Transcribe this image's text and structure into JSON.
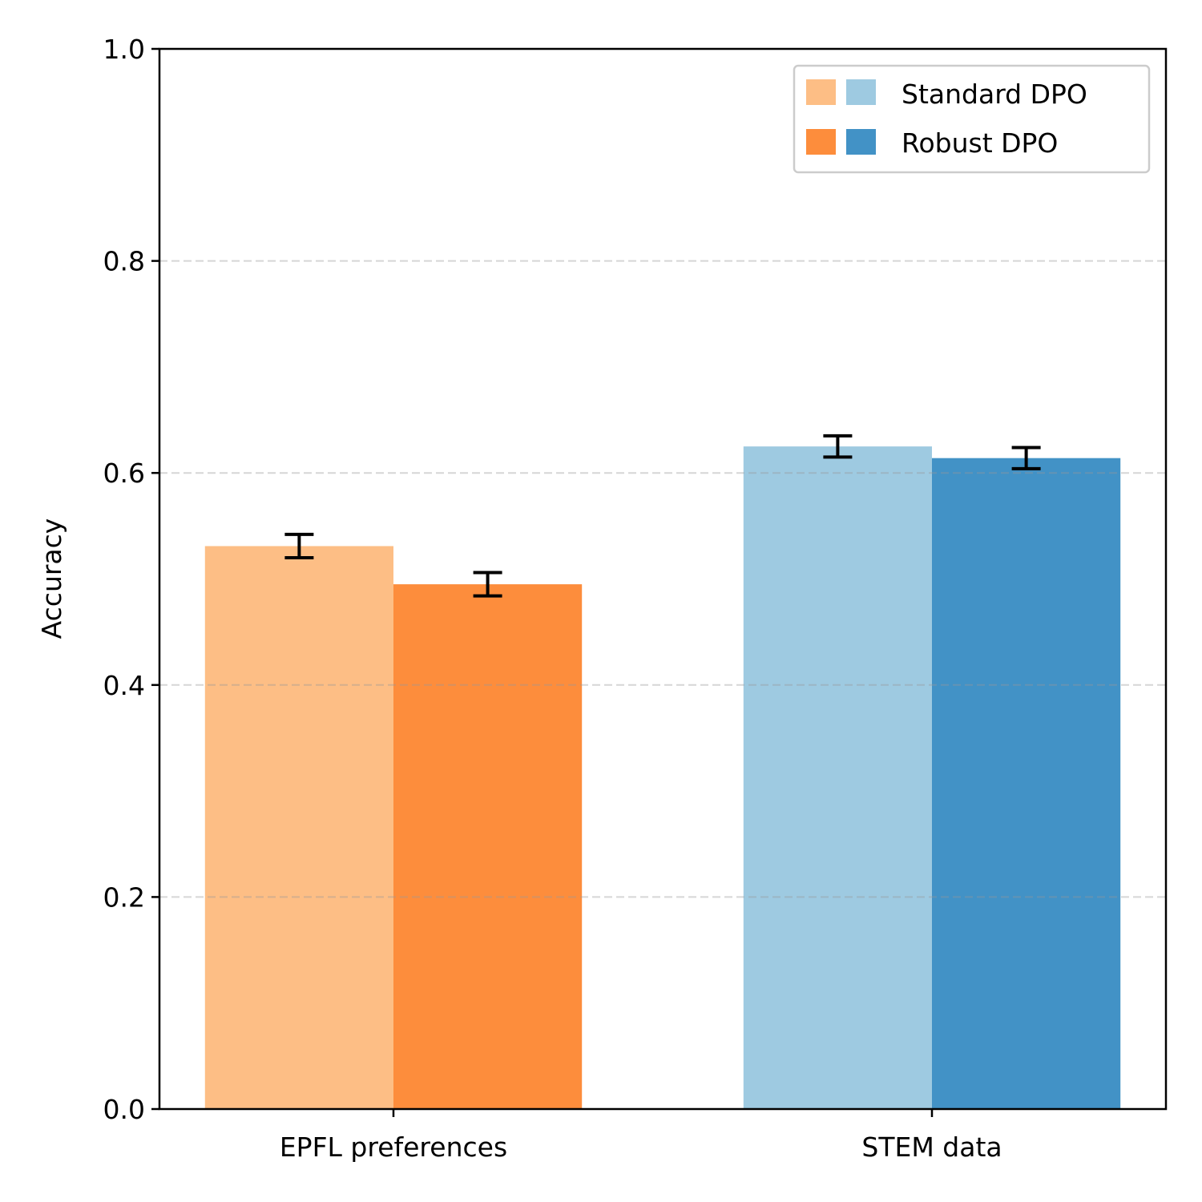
{
  "chart_data": {
    "type": "bar",
    "title": "",
    "xlabel": "",
    "ylabel": "Accuracy",
    "ylim": [
      0.0,
      1.0
    ],
    "yticks": [
      "0.0",
      "0.2",
      "0.4",
      "0.6",
      "0.8",
      "1.0"
    ],
    "categories": [
      "EPFL preferences",
      "STEM data"
    ],
    "grid": "y dashed",
    "legend_placement": "top-right",
    "series": [
      {
        "name": "Standard DPO",
        "values": [
          0.531,
          0.625
        ],
        "errors": [
          0.011,
          0.01
        ],
        "colors": [
          "#fdbe85",
          "#9ecae1"
        ]
      },
      {
        "name": "Robust DPO",
        "values": [
          0.495,
          0.614
        ],
        "errors": [
          0.011,
          0.01
        ],
        "colors": [
          "#fd8d3c",
          "#4292c6"
        ]
      }
    ]
  }
}
